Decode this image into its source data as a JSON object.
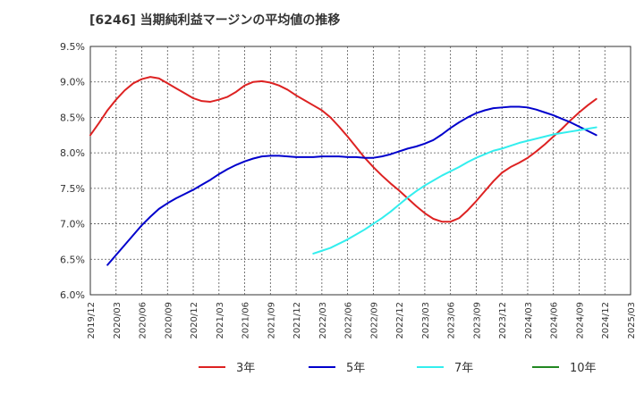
{
  "chart_data": {
    "type": "line",
    "title": "[6246]  当期純利益マージンの平均値の推移",
    "xlabel": "",
    "ylabel": "",
    "x_ticks": [
      "2019/12",
      "2020/03",
      "2020/06",
      "2020/09",
      "2020/12",
      "2021/03",
      "2021/06",
      "2021/09",
      "2021/12",
      "2022/03",
      "2022/06",
      "2022/09",
      "2022/12",
      "2023/03",
      "2023/06",
      "2023/09",
      "2023/12",
      "2024/03",
      "2024/06",
      "2024/09",
      "2024/12",
      "2025/03"
    ],
    "y_ticks": [
      "6.0%",
      "6.5%",
      "7.0%",
      "7.5%",
      "8.0%",
      "8.5%",
      "9.0%",
      "9.5%"
    ],
    "ylim": [
      6.0,
      9.5
    ],
    "grid": true,
    "legend_position": "bottom",
    "series": [
      {
        "name": "3年",
        "color": "#dd2222",
        "points": [
          [
            "2019/12",
            8.25
          ],
          [
            "2020/01",
            8.42
          ],
          [
            "2020/02",
            8.6
          ],
          [
            "2020/03",
            8.75
          ],
          [
            "2020/04",
            8.88
          ],
          [
            "2020/05",
            8.98
          ],
          [
            "2020/06",
            9.04
          ],
          [
            "2020/07",
            9.07
          ],
          [
            "2020/08",
            9.05
          ],
          [
            "2020/09",
            8.98
          ],
          [
            "2020/10",
            8.91
          ],
          [
            "2020/11",
            8.84
          ],
          [
            "2020/12",
            8.77
          ],
          [
            "2021/01",
            8.73
          ],
          [
            "2021/02",
            8.72
          ],
          [
            "2021/03",
            8.75
          ],
          [
            "2021/04",
            8.79
          ],
          [
            "2021/05",
            8.86
          ],
          [
            "2021/06",
            8.95
          ],
          [
            "2021/07",
            9.0
          ],
          [
            "2021/08",
            9.01
          ],
          [
            "2021/09",
            8.99
          ],
          [
            "2021/10",
            8.95
          ],
          [
            "2021/11",
            8.89
          ],
          [
            "2021/12",
            8.81
          ],
          [
            "2022/01",
            8.74
          ],
          [
            "2022/02",
            8.67
          ],
          [
            "2022/03",
            8.6
          ],
          [
            "2022/04",
            8.5
          ],
          [
            "2022/05",
            8.37
          ],
          [
            "2022/06",
            8.23
          ],
          [
            "2022/07",
            8.08
          ],
          [
            "2022/08",
            7.93
          ],
          [
            "2022/09",
            7.8
          ],
          [
            "2022/10",
            7.68
          ],
          [
            "2022/11",
            7.57
          ],
          [
            "2022/12",
            7.47
          ],
          [
            "2023/01",
            7.36
          ],
          [
            "2023/02",
            7.25
          ],
          [
            "2023/03",
            7.15
          ],
          [
            "2023/04",
            7.07
          ],
          [
            "2023/05",
            7.03
          ],
          [
            "2023/06",
            7.03
          ],
          [
            "2023/07",
            7.08
          ],
          [
            "2023/08",
            7.19
          ],
          [
            "2023/09",
            7.32
          ],
          [
            "2023/10",
            7.46
          ],
          [
            "2023/11",
            7.6
          ],
          [
            "2023/12",
            7.72
          ],
          [
            "2024/01",
            7.8
          ],
          [
            "2024/02",
            7.86
          ],
          [
            "2024/03",
            7.93
          ],
          [
            "2024/04",
            8.02
          ],
          [
            "2024/05",
            8.12
          ],
          [
            "2024/06",
            8.23
          ],
          [
            "2024/07",
            8.34
          ],
          [
            "2024/08",
            8.46
          ],
          [
            "2024/09",
            8.57
          ],
          [
            "2024/10",
            8.67
          ],
          [
            "2024/11",
            8.76
          ]
        ]
      },
      {
        "name": "5年",
        "color": "#0000cc",
        "points": [
          [
            "2020/02",
            6.42
          ],
          [
            "2020/03",
            6.56
          ],
          [
            "2020/04",
            6.7
          ],
          [
            "2020/05",
            6.84
          ],
          [
            "2020/06",
            6.98
          ],
          [
            "2020/07",
            7.1
          ],
          [
            "2020/08",
            7.21
          ],
          [
            "2020/09",
            7.29
          ],
          [
            "2020/10",
            7.36
          ],
          [
            "2020/11",
            7.42
          ],
          [
            "2020/12",
            7.48
          ],
          [
            "2021/01",
            7.55
          ],
          [
            "2021/02",
            7.62
          ],
          [
            "2021/03",
            7.7
          ],
          [
            "2021/04",
            7.77
          ],
          [
            "2021/05",
            7.83
          ],
          [
            "2021/06",
            7.88
          ],
          [
            "2021/07",
            7.92
          ],
          [
            "2021/08",
            7.95
          ],
          [
            "2021/09",
            7.96
          ],
          [
            "2021/10",
            7.96
          ],
          [
            "2021/11",
            7.95
          ],
          [
            "2021/12",
            7.94
          ],
          [
            "2022/01",
            7.94
          ],
          [
            "2022/02",
            7.94
          ],
          [
            "2022/03",
            7.95
          ],
          [
            "2022/04",
            7.95
          ],
          [
            "2022/05",
            7.95
          ],
          [
            "2022/06",
            7.94
          ],
          [
            "2022/07",
            7.94
          ],
          [
            "2022/08",
            7.93
          ],
          [
            "2022/09",
            7.93
          ],
          [
            "2022/10",
            7.95
          ],
          [
            "2022/11",
            7.98
          ],
          [
            "2022/12",
            8.02
          ],
          [
            "2023/01",
            8.06
          ],
          [
            "2023/02",
            8.09
          ],
          [
            "2023/03",
            8.13
          ],
          [
            "2023/04",
            8.18
          ],
          [
            "2023/05",
            8.26
          ],
          [
            "2023/06",
            8.35
          ],
          [
            "2023/07",
            8.43
          ],
          [
            "2023/08",
            8.5
          ],
          [
            "2023/09",
            8.56
          ],
          [
            "2023/10",
            8.6
          ],
          [
            "2023/11",
            8.63
          ],
          [
            "2023/12",
            8.64
          ],
          [
            "2024/01",
            8.65
          ],
          [
            "2024/02",
            8.65
          ],
          [
            "2024/03",
            8.64
          ],
          [
            "2024/04",
            8.61
          ],
          [
            "2024/05",
            8.57
          ],
          [
            "2024/06",
            8.53
          ],
          [
            "2024/07",
            8.48
          ],
          [
            "2024/08",
            8.43
          ],
          [
            "2024/09",
            8.37
          ],
          [
            "2024/10",
            8.31
          ],
          [
            "2024/11",
            8.25
          ]
        ]
      },
      {
        "name": "7年",
        "color": "#33eeee",
        "points": [
          [
            "2022/02",
            6.58
          ],
          [
            "2022/03",
            6.62
          ],
          [
            "2022/04",
            6.66
          ],
          [
            "2022/05",
            6.72
          ],
          [
            "2022/06",
            6.78
          ],
          [
            "2022/07",
            6.85
          ],
          [
            "2022/08",
            6.92
          ],
          [
            "2022/09",
            7.0
          ],
          [
            "2022/10",
            7.08
          ],
          [
            "2022/11",
            7.17
          ],
          [
            "2022/12",
            7.27
          ],
          [
            "2023/01",
            7.37
          ],
          [
            "2023/02",
            7.46
          ],
          [
            "2023/03",
            7.54
          ],
          [
            "2023/04",
            7.61
          ],
          [
            "2023/05",
            7.68
          ],
          [
            "2023/06",
            7.74
          ],
          [
            "2023/07",
            7.8
          ],
          [
            "2023/08",
            7.87
          ],
          [
            "2023/09",
            7.93
          ],
          [
            "2023/10",
            7.98
          ],
          [
            "2023/11",
            8.03
          ],
          [
            "2023/12",
            8.06
          ],
          [
            "2024/01",
            8.1
          ],
          [
            "2024/02",
            8.14
          ],
          [
            "2024/03",
            8.17
          ],
          [
            "2024/04",
            8.2
          ],
          [
            "2024/05",
            8.23
          ],
          [
            "2024/06",
            8.26
          ],
          [
            "2024/07",
            8.28
          ],
          [
            "2024/08",
            8.3
          ],
          [
            "2024/09",
            8.32
          ],
          [
            "2024/10",
            8.34
          ],
          [
            "2024/11",
            8.36
          ]
        ]
      },
      {
        "name": "10年",
        "color": "#228822",
        "points": []
      }
    ]
  }
}
